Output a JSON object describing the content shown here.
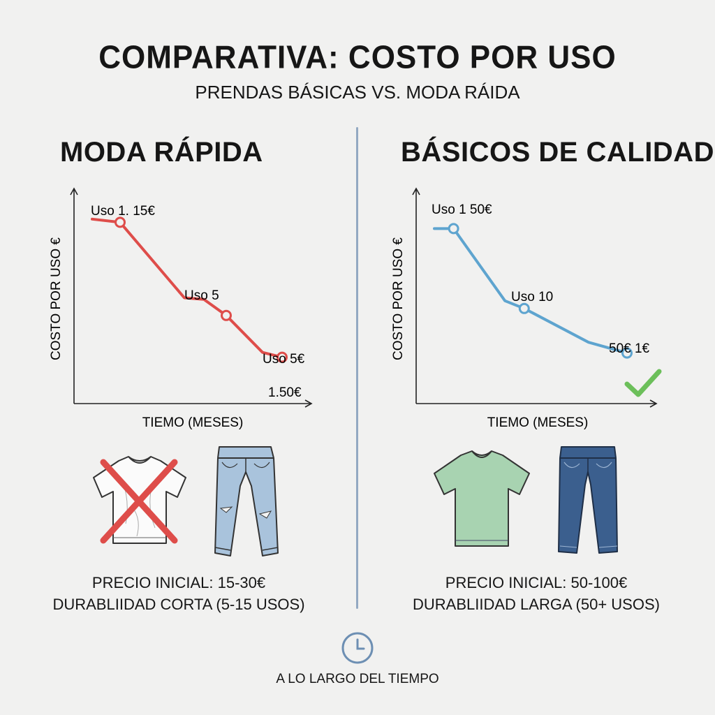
{
  "header": {
    "title": "COMPARATIVA: COSTO POR USO",
    "subtitle": "PRENDAS BÁSICAS VS. MODA RÁIDA"
  },
  "footer": {
    "text": "A LO LARGO DEL TIEMPO",
    "icon": "clock-icon"
  },
  "colors": {
    "fast": "#de4d4a",
    "quality": "#5ea4cf",
    "check": "#6cbf5a",
    "divider": "#93a9c2"
  },
  "panels": {
    "fast": {
      "title": "MODA RÁPIDA",
      "price_line": "PRECIO INICIAL: 15-30€",
      "durability_line": "DURABLIIDAD CORTA (5-15 USOS)",
      "garments": [
        "x-mark-icon",
        "white-tshirt-icon",
        "ripped-jeans-icon"
      ]
    },
    "quality": {
      "title": "BÁSICOS DE CALIDAD",
      "price_line": "PRECIO INICIAL: 50-100€",
      "durability_line": "DURABLIIDAD LARGA (50+ USOS)",
      "garments": [
        "check-mark-icon",
        "green-tshirt-icon",
        "dark-jeans-icon"
      ]
    }
  },
  "chart_data": [
    {
      "type": "line",
      "title": "MODA RÁPIDA",
      "xlabel": "TIEMO (MESES)",
      "ylabel": "COSTO POR USO €",
      "color": "#de4d4a",
      "x_ticks": "none",
      "y_ticks": "none",
      "grid": false,
      "x": [
        0,
        1,
        3.3,
        4,
        4.8,
        6.1,
        6.8
      ],
      "y": [
        10.4,
        10.2,
        5.5,
        5.4,
        4.4,
        2.1,
        1.8
      ],
      "markers": [
        1,
        4,
        6
      ],
      "annotations": [
        "Uso 1. 15€",
        "Uso 5",
        "Uso 5€",
        "1.50€"
      ]
    },
    {
      "type": "line",
      "title": "BÁSICOS DE CALIDAD",
      "xlabel": "TIEMO (MESES)",
      "ylabel": "COSTO POR USO €",
      "color": "#5ea4cf",
      "x_ticks": "none",
      "y_ticks": "none",
      "grid": false,
      "x": [
        0,
        0.6,
        2.2,
        2.8,
        4.8,
        6
      ],
      "y": [
        10.3,
        10.3,
        5.6,
        5.1,
        2.9,
        2.2
      ],
      "markers": [
        1,
        3,
        5
      ],
      "annotations": [
        "Uso 1 50€",
        "Uso 10",
        "50€ 1€"
      ],
      "checkmark": true
    }
  ]
}
